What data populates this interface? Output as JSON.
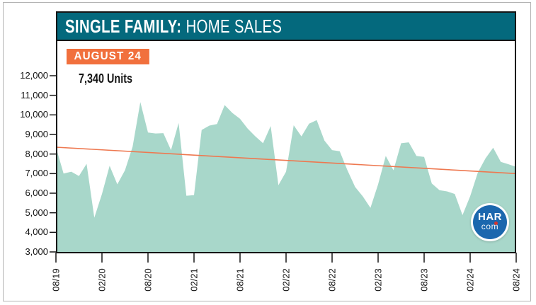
{
  "colors": {
    "teal": "#04697d",
    "orange": "#f1703d",
    "area_fill": "#a8d7ca",
    "trend_line": "#ee7850",
    "frame": "#161616",
    "logo_blue": "#1b67ae",
    "logo_red": "#d7372f",
    "page_border": "#b4b4b4"
  },
  "header": {
    "title_bold": "SINGLE FAMILY:",
    "title_regular": "HOME SALES"
  },
  "callout": {
    "badge": "AUGUST 24",
    "units": "7,340 Units"
  },
  "logo": {
    "line1": "HAR",
    "line2": "com"
  },
  "chart_data": {
    "type": "area",
    "title": "SINGLE FAMILY: HOME SALES",
    "subtitle": "AUGUST 24",
    "annotation": "7,340 Units",
    "series_name": "Single-Family Home Sales (Units)",
    "grid": false,
    "legend": "none",
    "ylim": [
      3000,
      12000
    ],
    "y_ticks": [
      {
        "value": 12000,
        "label": "12,000"
      },
      {
        "value": 11000,
        "label": "11,000"
      },
      {
        "value": 10000,
        "label": "10,000"
      },
      {
        "value": 9000,
        "label": "9,000"
      },
      {
        "value": 8000,
        "label": "8,000"
      },
      {
        "value": 7000,
        "label": "7,000"
      },
      {
        "value": 6000,
        "label": "6,000"
      },
      {
        "value": 5000,
        "label": "5,000"
      },
      {
        "value": 4000,
        "label": "4,000"
      },
      {
        "value": 3000,
        "label": "3,000"
      }
    ],
    "x_ticks": [
      "08/19",
      "02/20",
      "08/20",
      "02/21",
      "08/21",
      "02/22",
      "08/22",
      "02/23",
      "08/23",
      "02/24",
      "08/24"
    ],
    "months": [
      "08/19",
      "09/19",
      "10/19",
      "11/19",
      "12/19",
      "01/20",
      "02/20",
      "03/20",
      "04/20",
      "05/20",
      "06/20",
      "07/20",
      "08/20",
      "09/20",
      "10/20",
      "11/20",
      "12/20",
      "01/21",
      "02/21",
      "03/21",
      "04/21",
      "05/21",
      "06/21",
      "07/21",
      "08/21",
      "09/21",
      "10/21",
      "11/21",
      "12/21",
      "01/22",
      "02/22",
      "03/22",
      "04/22",
      "05/22",
      "06/22",
      "07/22",
      "08/22",
      "09/22",
      "10/22",
      "11/22",
      "12/22",
      "01/23",
      "02/23",
      "03/23",
      "04/23",
      "05/23",
      "06/23",
      "07/23",
      "08/23",
      "09/23",
      "10/23",
      "11/23",
      "12/23",
      "01/24",
      "02/24",
      "03/24",
      "04/24",
      "05/24",
      "06/24",
      "07/24",
      "08/24"
    ],
    "values": [
      8350,
      7000,
      7100,
      6880,
      7500,
      4750,
      5960,
      7400,
      6450,
      7170,
      8380,
      10650,
      9100,
      9050,
      9070,
      8200,
      9590,
      5870,
      5900,
      9230,
      9450,
      9530,
      10500,
      10100,
      9800,
      9300,
      8900,
      8550,
      9430,
      6410,
      7100,
      9470,
      8900,
      9550,
      9730,
      8690,
      8200,
      8140,
      7170,
      6320,
      5840,
      5250,
      6450,
      7900,
      7170,
      8550,
      8600,
      7900,
      7850,
      6500,
      6150,
      6090,
      5960,
      4880,
      5840,
      7050,
      7780,
      8320,
      7600,
      7480,
      7340
    ],
    "trend": {
      "type": "linear",
      "start_value": 8350,
      "end_value": 7000
    }
  }
}
